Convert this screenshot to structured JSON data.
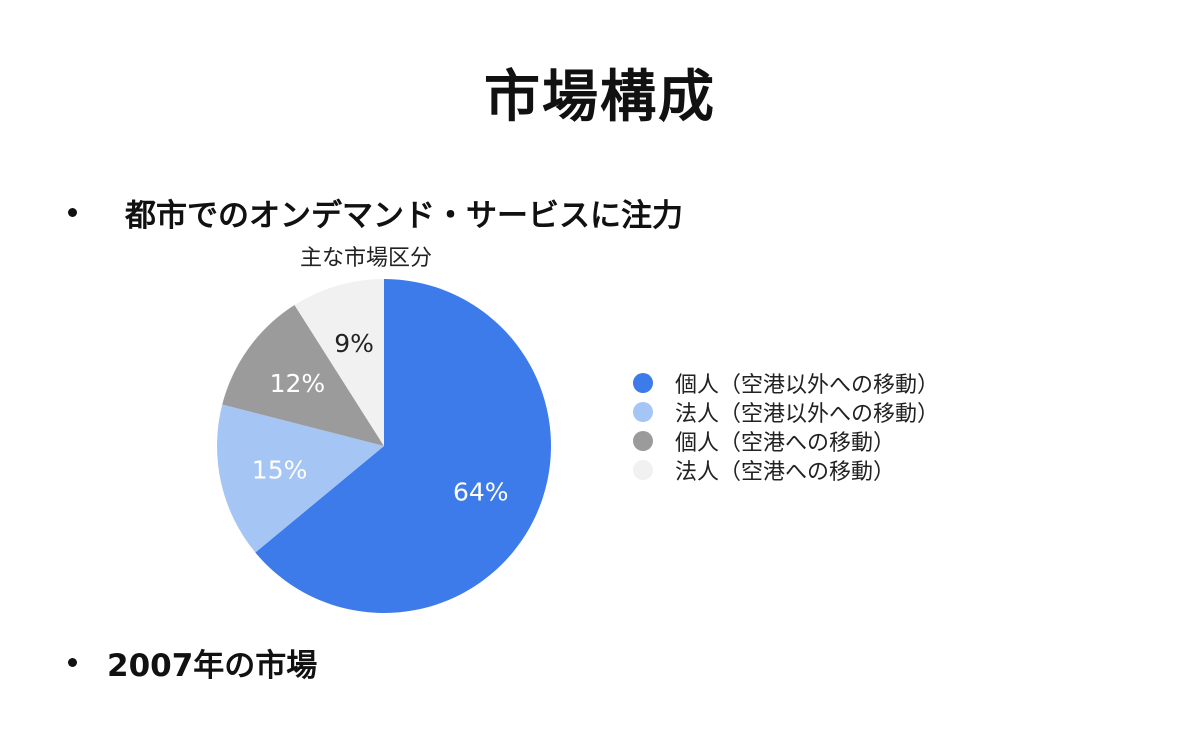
{
  "slide": {
    "title": "市場構成",
    "bullets": [
      "都市でのオンデマンド・サービスに注力",
      "2007年の市場"
    ]
  },
  "chart_data": {
    "type": "pie",
    "title": "主な市場区分",
    "legend_position": "right",
    "slices": [
      {
        "label": "個人（空港以外への移動）",
        "value": 64,
        "value_label": "64%",
        "color": "#3d7bea",
        "text_color": "#ffffff"
      },
      {
        "label": "法人（空港以外への移動）",
        "value": 15,
        "value_label": "15%",
        "color": "#a5c5f5",
        "text_color": "#ffffff"
      },
      {
        "label": "個人（空港への移動）",
        "value": 12,
        "value_label": "12%",
        "color": "#9b9b9b",
        "text_color": "#ffffff"
      },
      {
        "label": "法人（空港への移動）",
        "value": 9,
        "value_label": "9%",
        "color": "#f1f1f1",
        "text_color": "#222222"
      }
    ]
  }
}
